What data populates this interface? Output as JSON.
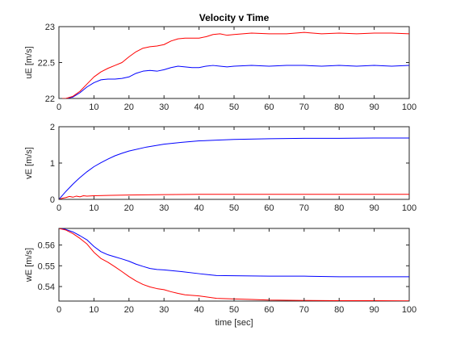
{
  "figure_title": "Velocity v Time",
  "chart_data": [
    {
      "type": "line",
      "title": "Velocity v Time",
      "xlabel": "",
      "ylabel": "uE [m/s]",
      "xlim": [
        0,
        100
      ],
      "ylim": [
        22,
        23
      ],
      "xticks": [
        0,
        10,
        20,
        30,
        40,
        50,
        60,
        70,
        80,
        90,
        100
      ],
      "xtick_labels": [
        "0",
        "10",
        "20",
        "30",
        "40",
        "50",
        "60",
        "70",
        "80",
        "90",
        "100"
      ],
      "yticks": [
        22,
        22.5,
        23
      ],
      "ytick_labels": [
        "22",
        "22.5",
        "23"
      ],
      "grid": false,
      "legend": "none",
      "series": [
        {
          "color": "#0000ff",
          "points": [
            [
              0,
              22.0
            ],
            [
              2,
              22.0
            ],
            [
              4,
              22.02
            ],
            [
              6,
              22.08
            ],
            [
              8,
              22.16
            ],
            [
              10,
              22.22
            ],
            [
              12,
              22.26
            ],
            [
              14,
              22.27
            ],
            [
              16,
              22.27
            ],
            [
              18,
              22.28
            ],
            [
              20,
              22.3
            ],
            [
              22,
              22.35
            ],
            [
              24,
              22.38
            ],
            [
              26,
              22.39
            ],
            [
              28,
              22.38
            ],
            [
              30,
              22.4
            ],
            [
              32,
              22.43
            ],
            [
              34,
              22.45
            ],
            [
              36,
              22.44
            ],
            [
              38,
              22.43
            ],
            [
              40,
              22.43
            ],
            [
              42,
              22.45
            ],
            [
              44,
              22.46
            ],
            [
              46,
              22.45
            ],
            [
              48,
              22.44
            ],
            [
              50,
              22.45
            ],
            [
              55,
              22.46
            ],
            [
              60,
              22.45
            ],
            [
              65,
              22.46
            ],
            [
              70,
              22.46
            ],
            [
              75,
              22.45
            ],
            [
              80,
              22.46
            ],
            [
              85,
              22.45
            ],
            [
              90,
              22.46
            ],
            [
              95,
              22.45
            ],
            [
              100,
              22.46
            ]
          ]
        },
        {
          "color": "#ff0000",
          "points": [
            [
              0,
              22.0
            ],
            [
              2,
              22.0
            ],
            [
              4,
              22.03
            ],
            [
              6,
              22.1
            ],
            [
              8,
              22.2
            ],
            [
              10,
              22.3
            ],
            [
              12,
              22.37
            ],
            [
              14,
              22.42
            ],
            [
              16,
              22.46
            ],
            [
              18,
              22.5
            ],
            [
              20,
              22.58
            ],
            [
              22,
              22.65
            ],
            [
              24,
              22.7
            ],
            [
              26,
              22.72
            ],
            [
              28,
              22.73
            ],
            [
              30,
              22.75
            ],
            [
              32,
              22.8
            ],
            [
              34,
              22.83
            ],
            [
              36,
              22.84
            ],
            [
              38,
              22.84
            ],
            [
              40,
              22.84
            ],
            [
              42,
              22.86
            ],
            [
              44,
              22.89
            ],
            [
              46,
              22.9
            ],
            [
              48,
              22.88
            ],
            [
              50,
              22.89
            ],
            [
              55,
              22.91
            ],
            [
              60,
              22.9
            ],
            [
              65,
              22.9
            ],
            [
              70,
              22.92
            ],
            [
              75,
              22.9
            ],
            [
              80,
              22.91
            ],
            [
              85,
              22.9
            ],
            [
              90,
              22.91
            ],
            [
              95,
              22.91
            ],
            [
              100,
              22.9
            ]
          ]
        }
      ]
    },
    {
      "type": "line",
      "title": "",
      "xlabel": "",
      "ylabel": "vE [m/s]",
      "xlim": [
        0,
        100
      ],
      "ylim": [
        0,
        2
      ],
      "xticks": [
        0,
        10,
        20,
        30,
        40,
        50,
        60,
        70,
        80,
        90,
        100
      ],
      "xtick_labels": [
        "0",
        "10",
        "20",
        "30",
        "40",
        "50",
        "60",
        "70",
        "80",
        "90",
        "100"
      ],
      "yticks": [
        0,
        1,
        2
      ],
      "ytick_labels": [
        "0",
        "1",
        "2"
      ],
      "grid": false,
      "legend": "none",
      "series": [
        {
          "color": "#0000ff",
          "points": [
            [
              0,
              0.0
            ],
            [
              1,
              0.11
            ],
            [
              2,
              0.22
            ],
            [
              3,
              0.32
            ],
            [
              4,
              0.42
            ],
            [
              5,
              0.51
            ],
            [
              6,
              0.6
            ],
            [
              8,
              0.76
            ],
            [
              10,
              0.9
            ],
            [
              12,
              1.01
            ],
            [
              14,
              1.11
            ],
            [
              16,
              1.2
            ],
            [
              18,
              1.27
            ],
            [
              20,
              1.33
            ],
            [
              25,
              1.44
            ],
            [
              30,
              1.52
            ],
            [
              35,
              1.57
            ],
            [
              40,
              1.61
            ],
            [
              45,
              1.63
            ],
            [
              50,
              1.65
            ],
            [
              60,
              1.67
            ],
            [
              70,
              1.68
            ],
            [
              80,
              1.68
            ],
            [
              90,
              1.69
            ],
            [
              100,
              1.69
            ]
          ]
        },
        {
          "color": "#ff0000",
          "points": [
            [
              0,
              0.0
            ],
            [
              1,
              0.03
            ],
            [
              2,
              0.05
            ],
            [
              3,
              0.08
            ],
            [
              4,
              0.06
            ],
            [
              5,
              0.09
            ],
            [
              6,
              0.07
            ],
            [
              7,
              0.1
            ],
            [
              8,
              0.09
            ],
            [
              10,
              0.1
            ],
            [
              15,
              0.11
            ],
            [
              20,
              0.12
            ],
            [
              30,
              0.13
            ],
            [
              40,
              0.14
            ],
            [
              50,
              0.14
            ],
            [
              60,
              0.14
            ],
            [
              70,
              0.14
            ],
            [
              80,
              0.14
            ],
            [
              90,
              0.14
            ],
            [
              100,
              0.14
            ]
          ]
        }
      ]
    },
    {
      "type": "line",
      "title": "",
      "xlabel": "time [sec]",
      "ylabel": "wE [m/s]",
      "xlim": [
        0,
        100
      ],
      "ylim": [
        0.533,
        0.568
      ],
      "xticks": [
        0,
        10,
        20,
        30,
        40,
        50,
        60,
        70,
        80,
        90,
        100
      ],
      "xtick_labels": [
        "0",
        "10",
        "20",
        "30",
        "40",
        "50",
        "60",
        "70",
        "80",
        "90",
        "100"
      ],
      "yticks": [
        0.54,
        0.55,
        0.56
      ],
      "ytick_labels": [
        "0.54",
        "0.55",
        "0.56"
      ],
      "grid": false,
      "legend": "none",
      "series": [
        {
          "color": "#0000ff",
          "points": [
            [
              0,
              0.568
            ],
            [
              2,
              0.5675
            ],
            [
              4,
              0.5663
            ],
            [
              6,
              0.5645
            ],
            [
              8,
              0.5625
            ],
            [
              10,
              0.5593
            ],
            [
              12,
              0.5568
            ],
            [
              14,
              0.5553
            ],
            [
              16,
              0.5543
            ],
            [
              18,
              0.5533
            ],
            [
              20,
              0.5522
            ],
            [
              22,
              0.5508
            ],
            [
              24,
              0.5497
            ],
            [
              26,
              0.5487
            ],
            [
              28,
              0.5482
            ],
            [
              30,
              0.548
            ],
            [
              35,
              0.5472
            ],
            [
              40,
              0.5462
            ],
            [
              45,
              0.5453
            ],
            [
              50,
              0.5452
            ],
            [
              60,
              0.545
            ],
            [
              70,
              0.545
            ],
            [
              80,
              0.5447
            ],
            [
              90,
              0.5447
            ],
            [
              100,
              0.5447
            ]
          ]
        },
        {
          "color": "#ff0000",
          "points": [
            [
              0,
              0.568
            ],
            [
              2,
              0.5672
            ],
            [
              4,
              0.5655
            ],
            [
              6,
              0.5632
            ],
            [
              8,
              0.5605
            ],
            [
              10,
              0.5565
            ],
            [
              12,
              0.5535
            ],
            [
              14,
              0.5517
            ],
            [
              16,
              0.5495
            ],
            [
              18,
              0.5472
            ],
            [
              20,
              0.5448
            ],
            [
              22,
              0.5427
            ],
            [
              24,
              0.541
            ],
            [
              26,
              0.5398
            ],
            [
              28,
              0.539
            ],
            [
              30,
              0.5385
            ],
            [
              32,
              0.5375
            ],
            [
              34,
              0.5367
            ],
            [
              36,
              0.536
            ],
            [
              40,
              0.5355
            ],
            [
              45,
              0.5343
            ],
            [
              50,
              0.534
            ],
            [
              55,
              0.5338
            ],
            [
              60,
              0.5335
            ],
            [
              70,
              0.5333
            ],
            [
              80,
              0.5332
            ],
            [
              90,
              0.5332
            ],
            [
              100,
              0.5331
            ]
          ]
        }
      ]
    }
  ]
}
